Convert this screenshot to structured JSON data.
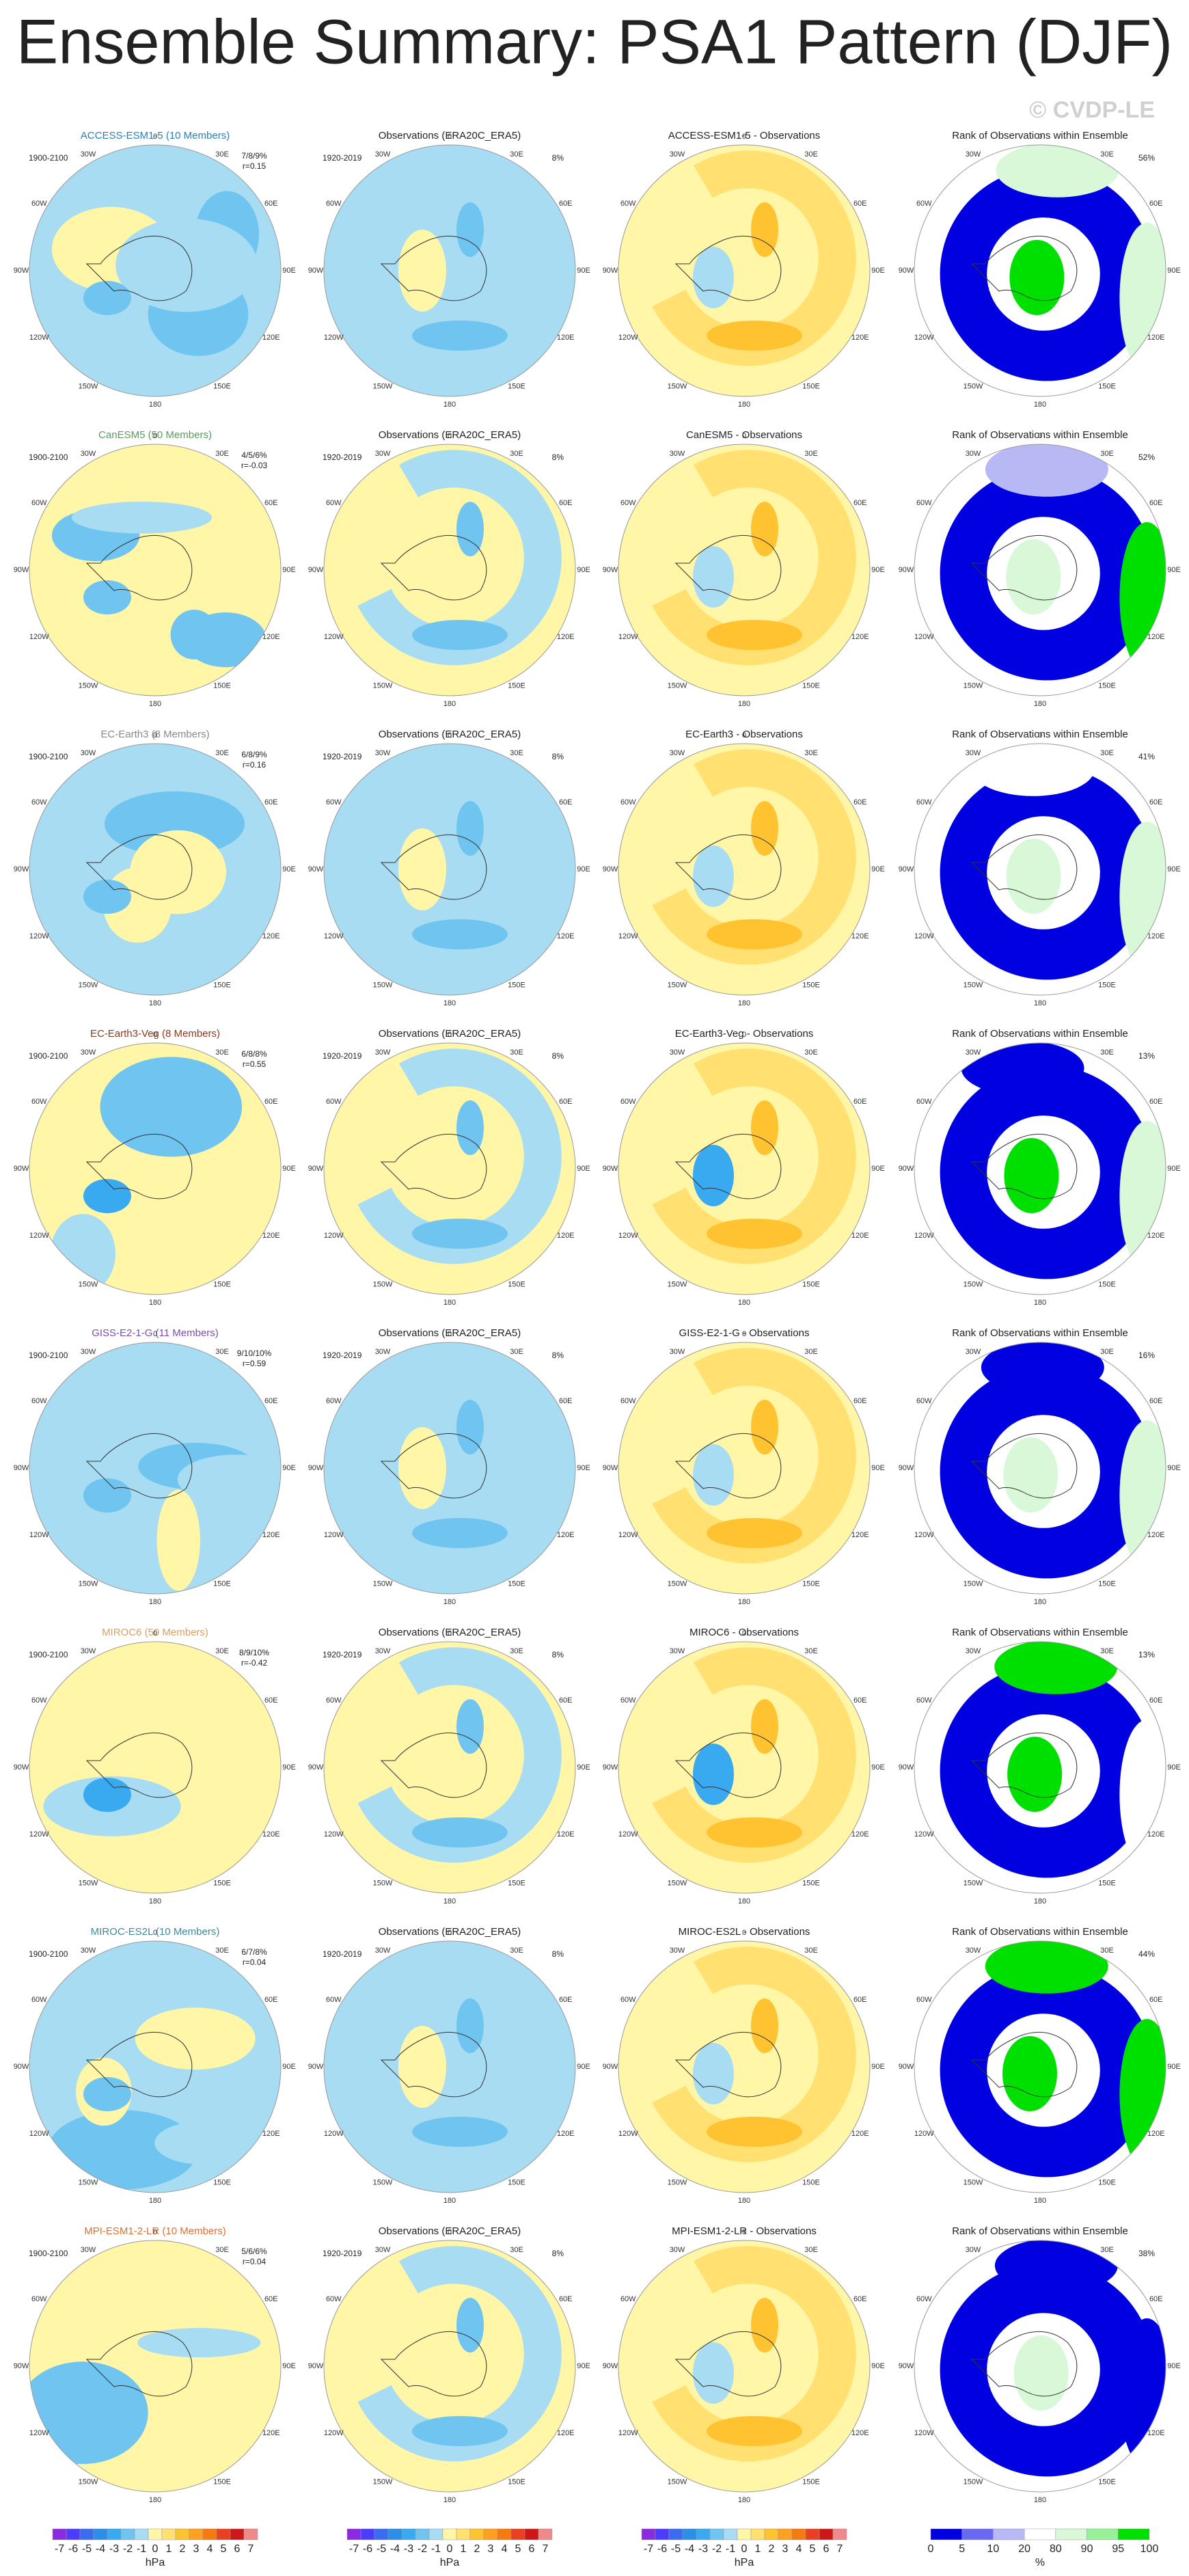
{
  "title": "Ensemble Summary: PSA1 Pattern (DJF)",
  "watermark": "© CVDP-LE",
  "longitude_labels": [
    "0",
    "30E",
    "60E",
    "90E",
    "120E",
    "150E",
    "180",
    "150W",
    "120W",
    "90W",
    "60W",
    "30W"
  ],
  "rows": [
    {
      "model": "ACCESS-ESM1-5 (10 Members)",
      "model_color": "#2a7fb8",
      "model_period": "1900-2100",
      "pct_label": "7/8/9%",
      "r_label": "r=0.15",
      "obs_title": "Observations (ERA20C_ERA5)",
      "obs_period": "1920-2019",
      "obs_pct": "8%",
      "diff_title": "ACCESS-ESM1-5 - Observations",
      "rank_title": "Rank of Observations within Ensemble",
      "rank_pct": "56%"
    },
    {
      "model": "CanESM5 (50 Members)",
      "model_color": "#5a9a5a",
      "model_period": "1900-2100",
      "pct_label": "4/5/6%",
      "r_label": "r=-0.03",
      "obs_title": "Observations (ERA20C_ERA5)",
      "obs_period": "1920-2019",
      "obs_pct": "8%",
      "diff_title": "CanESM5 - Observations",
      "rank_title": "Rank of Observations within Ensemble",
      "rank_pct": "52%"
    },
    {
      "model": "EC-Earth3 (8 Members)",
      "model_color": "#888888",
      "model_period": "1900-2100",
      "pct_label": "6/8/9%",
      "r_label": "r=0.16",
      "obs_title": "Observations (ERA20C_ERA5)",
      "obs_period": "1920-2019",
      "obs_pct": "8%",
      "diff_title": "EC-Earth3 - Observations",
      "rank_title": "Rank of Observations within Ensemble",
      "rank_pct": "41%"
    },
    {
      "model": "EC-Earth3-Veg (8 Members)",
      "model_color": "#8b3a1a",
      "model_period": "1900-2100",
      "pct_label": "6/8/8%",
      "r_label": "r=0.55",
      "obs_title": "Observations (ERA20C_ERA5)",
      "obs_period": "1920-2019",
      "obs_pct": "8%",
      "diff_title": "EC-Earth3-Veg - Observations",
      "rank_title": "Rank of Observations within Ensemble",
      "rank_pct": "13%"
    },
    {
      "model": "GISS-E2-1-G (11 Members)",
      "model_color": "#7a4fb0",
      "model_period": "1900-2100",
      "pct_label": "9/10/10%",
      "r_label": "r=0.59",
      "obs_title": "Observations (ERA20C_ERA5)",
      "obs_period": "1920-2019",
      "obs_pct": "8%",
      "diff_title": "GISS-E2-1-G - Observations",
      "rank_title": "Rank of Observations within Ensemble",
      "rank_pct": "16%"
    },
    {
      "model": "MIROC6 (50 Members)",
      "model_color": "#d7a060",
      "model_period": "1900-2100",
      "pct_label": "8/9/10%",
      "r_label": "r=-0.42",
      "obs_title": "Observations (ERA20C_ERA5)",
      "obs_period": "1920-2019",
      "obs_pct": "8%",
      "diff_title": "MIROC6 - Observations",
      "rank_title": "Rank of Observations within Ensemble",
      "rank_pct": "13%"
    },
    {
      "model": "MIROC-ES2L (10 Members)",
      "model_color": "#3f8a9a",
      "model_period": "1900-2100",
      "pct_label": "6/7/8%",
      "r_label": "r=0.04",
      "obs_title": "Observations (ERA20C_ERA5)",
      "obs_period": "1920-2019",
      "obs_pct": "8%",
      "diff_title": "MIROC-ES2L - Observations",
      "rank_title": "Rank of Observations within Ensemble",
      "rank_pct": "44%"
    },
    {
      "model": "MPI-ESM1-2-LR (10 Members)",
      "model_color": "#e07030",
      "model_period": "1900-2100",
      "pct_label": "5/6/6%",
      "r_label": "r=0.04",
      "obs_title": "Observations (ERA20C_ERA5)",
      "obs_period": "1920-2019",
      "obs_pct": "8%",
      "diff_title": "MPI-ESM1-2-LR - Observations",
      "rank_title": "Rank of Observations within Ensemble",
      "rank_pct": "38%"
    }
  ],
  "hpa_colorbar": {
    "ticks": [
      "-7",
      "-6",
      "-5",
      "-4",
      "-3",
      "-2",
      "-1",
      "0",
      "1",
      "2",
      "3",
      "4",
      "5",
      "6",
      "7"
    ],
    "unit": "hPa",
    "colors": [
      "#8a2be2",
      "#4b3cff",
      "#3b6cf0",
      "#2b8fe8",
      "#3aaaf0",
      "#6fc4f0",
      "#a8dcf2",
      "#fff6a8",
      "#ffe070",
      "#ffc230",
      "#ffa020",
      "#f57a10",
      "#e84020",
      "#cc1818",
      "#f08a8a"
    ]
  },
  "rank_colorbar": {
    "ticks": [
      0,
      5,
      10,
      20,
      80,
      90,
      95,
      100
    ],
    "unit": "%",
    "colors": [
      "#0000e0",
      "#6a6af0",
      "#b8b8f5",
      "#ffffff",
      "#d8f8d8",
      "#98f098",
      "#00e000"
    ]
  }
}
